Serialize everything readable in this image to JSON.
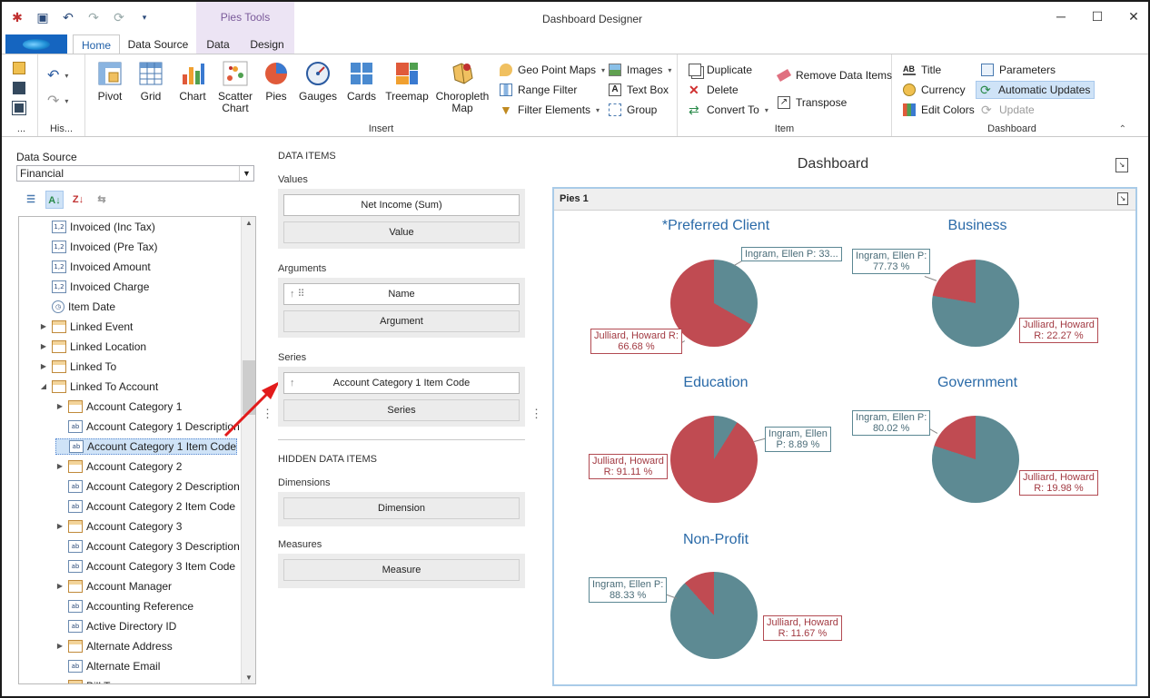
{
  "window": {
    "title": "Dashboard Designer",
    "contextual_tab_title": "Pies Tools",
    "controls": {
      "minimize": "─",
      "maximize": "☐",
      "close": "✕"
    }
  },
  "qat_icons": [
    "app-logo-icon",
    "save-icon",
    "undo-icon",
    "redo-icon",
    "refresh-icon",
    "customize-icon"
  ],
  "tabs": [
    {
      "label": "Home",
      "active": true
    },
    {
      "label": "Data Source",
      "active": false
    },
    {
      "label": "Data",
      "active": false
    },
    {
      "label": "Design",
      "active": false
    }
  ],
  "ribbon": {
    "groups": {
      "file": "...",
      "history": "His...",
      "insert": "Insert",
      "item": "Item",
      "dashboard": "Dashboard"
    },
    "insert_big": [
      "Pivot",
      "Grid",
      "Chart",
      "Scatter Chart",
      "Pies",
      "Gauges",
      "Cards",
      "Treemap",
      "Choropleth Map"
    ],
    "insert_small_col1": [
      {
        "label": "Geo Point Maps",
        "dropdown": true
      },
      {
        "label": "Range Filter",
        "dropdown": false
      },
      {
        "label": "Filter Elements",
        "dropdown": true
      }
    ],
    "insert_small_col2": [
      {
        "label": "Images",
        "dropdown": true
      },
      {
        "label": "Text Box",
        "dropdown": false
      },
      {
        "label": "Group",
        "dropdown": false
      }
    ],
    "item_col1": [
      {
        "label": "Duplicate"
      },
      {
        "label": "Delete"
      },
      {
        "label": "Convert To",
        "dropdown": true
      }
    ],
    "item_col2": [
      {
        "label": "Remove Data Items"
      },
      {
        "label": "Transpose"
      }
    ],
    "dashboard_col1": [
      {
        "label": "Title"
      },
      {
        "label": "Currency"
      },
      {
        "label": "Edit Colors"
      }
    ],
    "dashboard_col2": [
      {
        "label": "Parameters",
        "state": "normal"
      },
      {
        "label": "Automatic Updates",
        "state": "selected"
      },
      {
        "label": "Update",
        "state": "disabled"
      }
    ]
  },
  "data_source": {
    "label": "Data Source",
    "selected": "Financial"
  },
  "tree": {
    "items": [
      {
        "label": "Invoiced (Inc Tax)",
        "icon": "numeric-field-icon",
        "indent": 1,
        "expandable": false
      },
      {
        "label": "Invoiced (Pre Tax)",
        "icon": "numeric-field-icon",
        "indent": 1,
        "expandable": false
      },
      {
        "label": "Invoiced Amount",
        "icon": "numeric-field-icon",
        "indent": 1,
        "expandable": false
      },
      {
        "label": "Invoiced Charge",
        "icon": "numeric-field-icon",
        "indent": 1,
        "expandable": false
      },
      {
        "label": "Item Date",
        "icon": "date-field-icon",
        "indent": 1,
        "expandable": false
      },
      {
        "label": "Linked Event",
        "icon": "table-icon",
        "indent": 1,
        "expandable": true
      },
      {
        "label": "Linked Location",
        "icon": "table-icon",
        "indent": 1,
        "expandable": true
      },
      {
        "label": "Linked To",
        "icon": "table-icon",
        "indent": 1,
        "expandable": true
      },
      {
        "label": "Linked To Account",
        "icon": "table-icon",
        "indent": 1,
        "expandable": true,
        "expanded": true
      },
      {
        "label": "Account Category 1",
        "icon": "table-icon",
        "indent": 2,
        "expandable": true
      },
      {
        "label": "Account Category 1 Description",
        "icon": "text-field-icon",
        "indent": 2,
        "expandable": false
      },
      {
        "label": "Account Category 1 Item Code",
        "icon": "text-field-icon",
        "indent": 2,
        "expandable": false,
        "selected": true
      },
      {
        "label": "Account Category 2",
        "icon": "table-icon",
        "indent": 2,
        "expandable": true
      },
      {
        "label": "Account Category 2 Description",
        "icon": "text-field-icon",
        "indent": 2,
        "expandable": false
      },
      {
        "label": "Account Category 2 Item Code",
        "icon": "text-field-icon",
        "indent": 2,
        "expandable": false
      },
      {
        "label": "Account Category 3",
        "icon": "table-icon",
        "indent": 2,
        "expandable": true
      },
      {
        "label": "Account Category 3 Description",
        "icon": "text-field-icon",
        "indent": 2,
        "expandable": false
      },
      {
        "label": "Account Category 3 Item Code",
        "icon": "text-field-icon",
        "indent": 2,
        "expandable": false
      },
      {
        "label": "Account Manager",
        "icon": "table-icon",
        "indent": 2,
        "expandable": true
      },
      {
        "label": "Accounting Reference",
        "icon": "text-field-icon",
        "indent": 2,
        "expandable": false
      },
      {
        "label": "Active Directory ID",
        "icon": "text-field-icon",
        "indent": 2,
        "expandable": false
      },
      {
        "label": "Alternate Address",
        "icon": "table-icon",
        "indent": 2,
        "expandable": true
      },
      {
        "label": "Alternate Email",
        "icon": "text-field-icon",
        "indent": 2,
        "expandable": false
      },
      {
        "label": "Bill T...",
        "icon": "table-icon",
        "indent": 2,
        "expandable": true
      }
    ]
  },
  "data_items": {
    "title": "DATA ITEMS",
    "values_label": "Values",
    "values_item": "Net Income (Sum)",
    "values_placeholder": "Value",
    "arguments_label": "Arguments",
    "arguments_item": "Name",
    "arguments_placeholder": "Argument",
    "series_label": "Series",
    "series_item": "Account Category 1 Item Code",
    "series_placeholder": "Series",
    "hidden_title": "HIDDEN DATA ITEMS",
    "dimensions_label": "Dimensions",
    "dimensions_placeholder": "Dimension",
    "measures_label": "Measures",
    "measures_placeholder": "Measure"
  },
  "dashboard": {
    "title": "Dashboard",
    "panel_title": "Pies 1",
    "colors": {
      "ingram": "#5d8a93",
      "julliard": "#c04b52"
    },
    "pies": [
      {
        "title": "*Preferred Client",
        "ingram_pct": 33.32,
        "julliard_pct": 66.68,
        "ingram_label": "Ingram, Ellen P: 33...",
        "julliard_label_1": "Julliard, Howard R:",
        "julliard_label_2": "66.68 %"
      },
      {
        "title": "Business",
        "ingram_pct": 77.73,
        "julliard_pct": 22.27,
        "ingram_label_1": "Ingram, Ellen P:",
        "ingram_label_2": "77.73 %",
        "julliard_label_1": "Julliard, Howard",
        "julliard_label_2": "R: 22.27 %"
      },
      {
        "title": "Education",
        "ingram_pct": 8.89,
        "julliard_pct": 91.11,
        "ingram_label_1": "Ingram, Ellen",
        "ingram_label_2": "P: 8.89 %",
        "julliard_label_1": "Julliard, Howard",
        "julliard_label_2": "R: 91.11 %"
      },
      {
        "title": "Government",
        "ingram_pct": 80.02,
        "julliard_pct": 19.98,
        "ingram_label_1": "Ingram, Ellen P:",
        "ingram_label_2": "80.02 %",
        "julliard_label_1": "Julliard, Howard",
        "julliard_label_2": "R: 19.98 %"
      },
      {
        "title": "Non-Profit",
        "ingram_pct": 88.33,
        "julliard_pct": 11.67,
        "ingram_label_1": "Ingram, Ellen P:",
        "ingram_label_2": "88.33 %",
        "julliard_label_1": "Julliard, Howard",
        "julliard_label_2": "R: 11.67 %"
      }
    ]
  }
}
